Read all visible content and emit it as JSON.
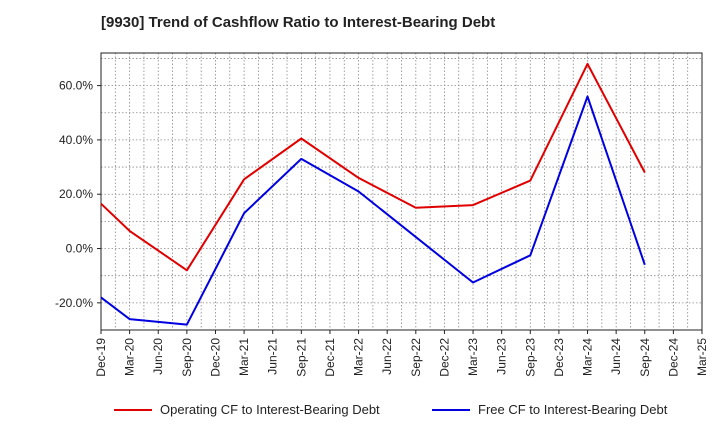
{
  "title": "[9930]  Trend of Cashflow Ratio to Interest-Bearing Debt",
  "chart_data": {
    "type": "line",
    "title": "[9930]  Trend of Cashflow Ratio to Interest-Bearing Debt",
    "xlabel": "",
    "ylabel": "",
    "categories": [
      "Dec-19",
      "Mar-20",
      "Jun-20",
      "Sep-20",
      "Dec-20",
      "Mar-21",
      "Jun-21",
      "Sep-21",
      "Dec-21",
      "Mar-22",
      "Jun-22",
      "Sep-22",
      "Dec-22",
      "Mar-23",
      "Jun-23",
      "Sep-23",
      "Dec-23",
      "Mar-24",
      "Jun-24",
      "Sep-24",
      "Dec-24",
      "Mar-25"
    ],
    "ylim": [
      -30,
      72
    ],
    "yticks": [
      -20,
      0,
      20,
      40,
      60
    ],
    "ytick_labels": [
      "-20.0%",
      "0.0%",
      "20.0%",
      "40.0%",
      "60.0%"
    ],
    "grid": true,
    "legend_position": "bottom",
    "series": [
      {
        "name": "Operating CF to Interest-Bearing Debt",
        "color": "#e00000",
        "values": [
          16.5,
          6.5,
          null,
          -8,
          null,
          25.5,
          null,
          40.5,
          null,
          26,
          null,
          15,
          null,
          16,
          null,
          25,
          null,
          68,
          null,
          28,
          null,
          null
        ]
      },
      {
        "name": "Free CF to Interest-Bearing Debt",
        "color": "#0000e0",
        "values": [
          -18,
          -26,
          null,
          -28,
          null,
          13,
          null,
          33,
          null,
          21,
          null,
          null,
          null,
          -12.5,
          null,
          -2.5,
          null,
          56,
          null,
          -6,
          null,
          null
        ]
      }
    ]
  }
}
